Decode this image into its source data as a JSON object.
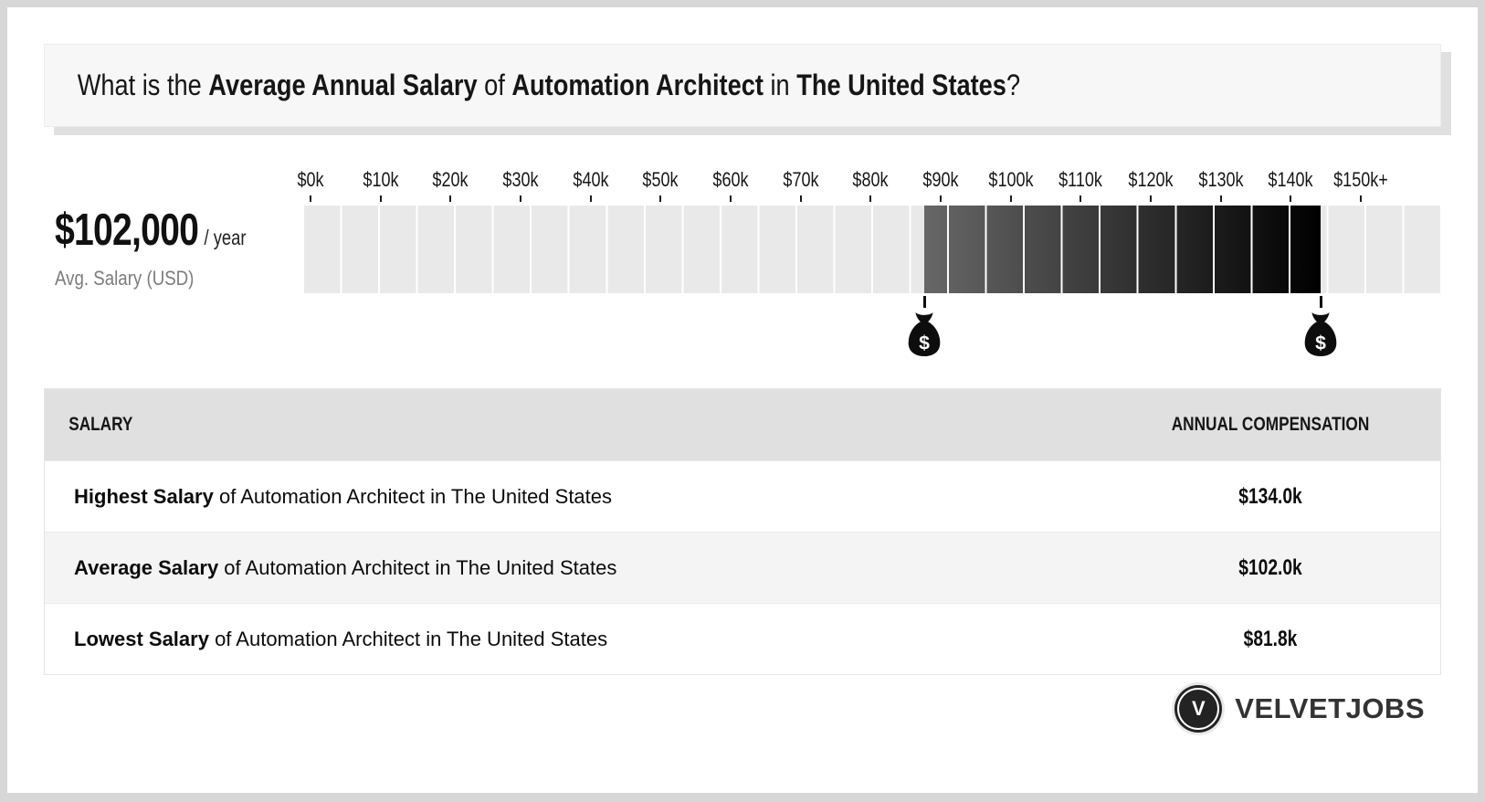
{
  "title": {
    "segments": [
      {
        "text": "What is the ",
        "bold": false
      },
      {
        "text": "Average Annual Salary",
        "bold": true
      },
      {
        "text": " of ",
        "bold": false
      },
      {
        "text": "Automation Architect",
        "bold": true
      },
      {
        "text": " in ",
        "bold": false
      },
      {
        "text": "The United States",
        "bold": true
      },
      {
        "text": "?",
        "bold": false
      }
    ]
  },
  "stat": {
    "amount": "$102,000",
    "per": "/ year",
    "caption": "Avg. Salary (USD)"
  },
  "chart_data": {
    "type": "bar",
    "title": "Average Annual Salary range of Automation Architect in The United States",
    "x_ticks": [
      "$0k",
      "$10k",
      "$20k",
      "$30k",
      "$40k",
      "$50k",
      "$60k",
      "$70k",
      "$80k",
      "$90k",
      "$100k",
      "$110k",
      "$120k",
      "$130k",
      "$140k",
      "$150k+"
    ],
    "axis_range_thousands": [
      0,
      150
    ],
    "cell_step_thousands": 5,
    "highlight_range_thousands": [
      81.8,
      134.0
    ],
    "marker_values_thousands": [
      81.8,
      134.0
    ],
    "marker_symbol": "$",
    "lowest_thousands": 81.8,
    "average_thousands": 102.0,
    "highest_thousands": 134.0,
    "colors": {
      "cell": "#e9e9e9",
      "gap": "#ffffff",
      "gradient_start": "#676767",
      "gradient_end": "#000000",
      "marker": "#0d0d0d"
    }
  },
  "table": {
    "headers": [
      "SALARY",
      "ANNUAL COMPENSATION"
    ],
    "rows": [
      {
        "bold": "Highest Salary",
        "rest": " of Automation Architect in The United States",
        "value": "$134.0k"
      },
      {
        "bold": "Average Salary",
        "rest": " of Automation Architect in The United States",
        "value": "$102.0k"
      },
      {
        "bold": "Lowest Salary",
        "rest": " of Automation Architect in The United States",
        "value": "$81.8k"
      }
    ]
  },
  "logo": {
    "monogram": "V",
    "name": "VELVETJOBS"
  }
}
